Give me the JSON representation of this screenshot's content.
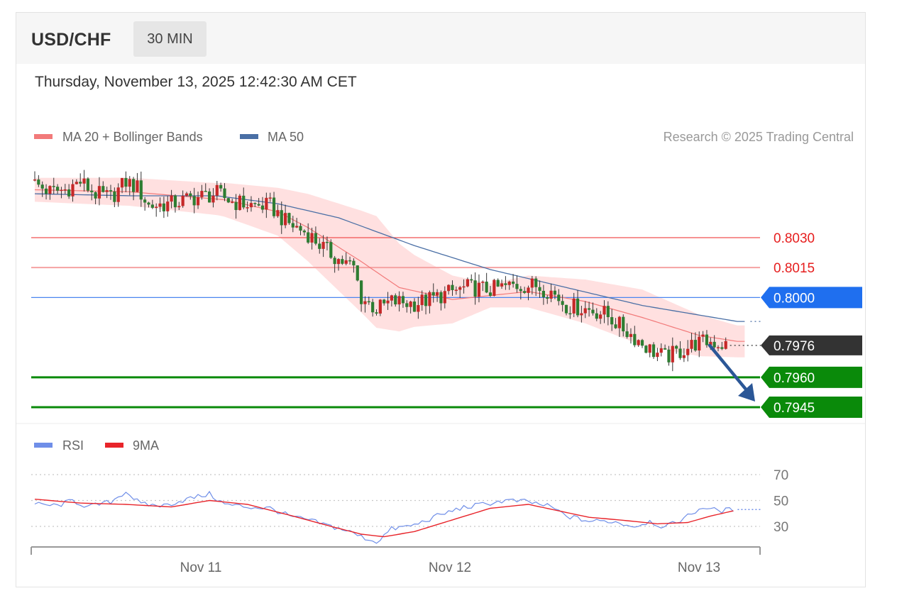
{
  "header": {
    "symbol": "USD/CHF",
    "timeframe": "30 MIN",
    "timestamp": "Thursday, November 13, 2025 12:42:30 AM CET"
  },
  "legend": {
    "ma20": "MA 20 + Bollinger Bands",
    "ma50": "MA 50",
    "credit": "Research © 2025 Trading Central"
  },
  "rsi_legend": {
    "rsi": "RSI",
    "ma9": "9MA"
  },
  "colors": {
    "up_candle": "#c62828",
    "down_candle": "#2e7d32",
    "bollinger": "#ffd6d6",
    "ma20": "#f27a7a",
    "ma50": "#4a6fa5",
    "resistance": "#f05050",
    "pivot": "#1f6fef",
    "support": "#0a8a0a",
    "current": "#333333",
    "rsi": "#6f8ee8",
    "rsi_ma": "#e8242a"
  },
  "chart_data": [
    {
      "type": "candlestick",
      "ylim": [
        0.7936,
        0.8066
      ],
      "x_ticks": [
        "Nov 11",
        "Nov 12",
        "Nov 13"
      ],
      "levels": [
        {
          "value": 0.803,
          "label": "0.8030",
          "kind": "resistance"
        },
        {
          "value": 0.8015,
          "label": "0.8015",
          "kind": "resistance-light"
        },
        {
          "value": 0.8,
          "label": "0.8000",
          "kind": "pivot"
        },
        {
          "value": 0.7976,
          "label": "0.7976",
          "kind": "current"
        },
        {
          "value": 0.796,
          "label": "0.7960",
          "kind": "support"
        },
        {
          "value": 0.7945,
          "label": "0.7945",
          "kind": "support"
        }
      ],
      "forecast": {
        "from": 0.7976,
        "to": 0.795,
        "direction": "down"
      },
      "close_anchors": [
        [
          0,
          0.8057
        ],
        [
          4,
          0.8053
        ],
        [
          8,
          0.8054
        ],
        [
          12,
          0.8058
        ],
        [
          16,
          0.8052
        ],
        [
          20,
          0.805
        ],
        [
          24,
          0.8058
        ],
        [
          27,
          0.8055
        ],
        [
          30,
          0.8046
        ],
        [
          36,
          0.8047
        ],
        [
          42,
          0.805
        ],
        [
          48,
          0.8052
        ],
        [
          52,
          0.8048
        ],
        [
          58,
          0.8046
        ],
        [
          62,
          0.8046
        ],
        [
          66,
          0.8038
        ],
        [
          72,
          0.8032
        ],
        [
          76,
          0.8025
        ],
        [
          80,
          0.8019
        ],
        [
          84,
          0.8015
        ],
        [
          86,
          0.8
        ],
        [
          90,
          0.7994
        ],
        [
          94,
          0.7998
        ],
        [
          100,
          0.7997
        ],
        [
          104,
          0.7999
        ],
        [
          110,
          0.8003
        ],
        [
          114,
          0.8005
        ],
        [
          120,
          0.8004
        ],
        [
          126,
          0.8006
        ],
        [
          132,
          0.8006
        ],
        [
          136,
          0.8003
        ],
        [
          140,
          0.7996
        ],
        [
          146,
          0.7994
        ],
        [
          150,
          0.7992
        ],
        [
          154,
          0.7986
        ],
        [
          158,
          0.798
        ],
        [
          162,
          0.7974
        ],
        [
          166,
          0.797
        ],
        [
          170,
          0.7973
        ],
        [
          174,
          0.7977
        ],
        [
          178,
          0.7978
        ],
        [
          182,
          0.7976
        ]
      ],
      "ma50_anchors": [
        [
          0,
          0.8052
        ],
        [
          25,
          0.8051
        ],
        [
          48,
          0.8051
        ],
        [
          64,
          0.8047
        ],
        [
          80,
          0.804
        ],
        [
          100,
          0.8026
        ],
        [
          120,
          0.8014
        ],
        [
          140,
          0.8005
        ],
        [
          160,
          0.7996
        ],
        [
          185,
          0.7988
        ]
      ],
      "ma20_anchors": [
        [
          0,
          0.8054
        ],
        [
          25,
          0.8053
        ],
        [
          50,
          0.8049
        ],
        [
          64,
          0.8043
        ],
        [
          72,
          0.8035
        ],
        [
          86,
          0.8018
        ],
        [
          96,
          0.8005
        ],
        [
          110,
          0.7999
        ],
        [
          130,
          0.8003
        ],
        [
          145,
          0.7998
        ],
        [
          160,
          0.799
        ],
        [
          175,
          0.7981
        ],
        [
          185,
          0.7978
        ]
      ],
      "band_width": [
        [
          0,
          0.0006
        ],
        [
          48,
          0.0008
        ],
        [
          64,
          0.0012
        ],
        [
          90,
          0.0028
        ],
        [
          100,
          0.0018
        ],
        [
          120,
          0.0006
        ],
        [
          140,
          0.001
        ],
        [
          160,
          0.0014
        ],
        [
          185,
          0.0008
        ]
      ]
    },
    {
      "type": "line",
      "ylim": [
        10,
        80
      ],
      "y_ticks": [
        70,
        50,
        30
      ],
      "series": [
        {
          "name": "RSI",
          "anchors": [
            [
              0,
              47
            ],
            [
              6,
              46
            ],
            [
              10,
              50
            ],
            [
              14,
              45
            ],
            [
              20,
              49
            ],
            [
              24,
              57
            ],
            [
              28,
              47
            ],
            [
              34,
              46
            ],
            [
              40,
              51
            ],
            [
              46,
              55
            ],
            [
              50,
              47
            ],
            [
              56,
              45
            ],
            [
              62,
              44
            ],
            [
              68,
              37
            ],
            [
              72,
              35
            ],
            [
              78,
              30
            ],
            [
              82,
              27
            ],
            [
              86,
              22
            ],
            [
              90,
              18
            ],
            [
              94,
              28
            ],
            [
              100,
              31
            ],
            [
              106,
              38
            ],
            [
              112,
              44
            ],
            [
              118,
              47
            ],
            [
              124,
              50
            ],
            [
              130,
              49
            ],
            [
              136,
              45
            ],
            [
              140,
              38
            ],
            [
              146,
              34
            ],
            [
              152,
              34
            ],
            [
              158,
              30
            ],
            [
              162,
              34
            ],
            [
              166,
              29
            ],
            [
              172,
              38
            ],
            [
              176,
              45
            ],
            [
              180,
              42
            ],
            [
              184,
              43
            ]
          ]
        },
        {
          "name": "9MA",
          "anchors": [
            [
              0,
              51
            ],
            [
              12,
              48
            ],
            [
              24,
              47
            ],
            [
              36,
              45
            ],
            [
              46,
              50
            ],
            [
              56,
              47
            ],
            [
              68,
              38
            ],
            [
              78,
              30
            ],
            [
              86,
              24
            ],
            [
              92,
              22
            ],
            [
              100,
              26
            ],
            [
              110,
              35
            ],
            [
              120,
              44
            ],
            [
              130,
              47
            ],
            [
              138,
              42
            ],
            [
              146,
              37
            ],
            [
              154,
              35
            ],
            [
              164,
              32
            ],
            [
              172,
              33
            ],
            [
              178,
              38
            ],
            [
              184,
              42
            ]
          ]
        }
      ]
    }
  ]
}
